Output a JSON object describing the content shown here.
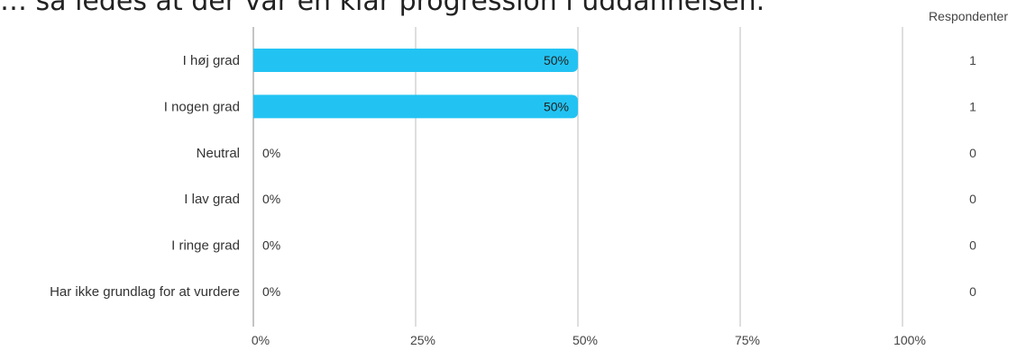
{
  "title": "… så ledes at der var en klar progression i uddannelsen.",
  "respondents_header": "Respondenter",
  "colors": {
    "bar": "#22c3f3",
    "grid": "#bdbdbd",
    "axis": "#888888"
  },
  "chart_data": {
    "type": "bar",
    "orientation": "horizontal",
    "title": "… så ledes at der var en klar progression i uddannelsen.",
    "categories": [
      "I høj grad",
      "I nogen grad",
      "Neutral",
      "I lav grad",
      "I ringe grad",
      "Har ikke grundlag for at vurdere"
    ],
    "values": [
      50,
      50,
      0,
      0,
      0,
      0
    ],
    "value_labels": [
      "50%",
      "50%",
      "0%",
      "0%",
      "0%",
      "0%"
    ],
    "respondents": [
      1,
      1,
      0,
      0,
      0,
      0
    ],
    "xlim": [
      0,
      100
    ],
    "xticks": [
      "0%",
      "25%",
      "50%",
      "75%",
      "100%"
    ],
    "xlabel": "",
    "ylabel": "",
    "grid": true,
    "legend": "none"
  }
}
